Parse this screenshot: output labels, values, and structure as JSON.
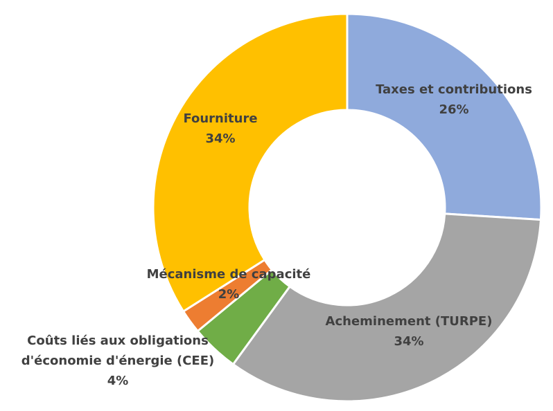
{
  "chart_data": {
    "type": "donut",
    "categories": [
      "Taxes et contributions",
      "Acheminement (TURPE)",
      "Coûts liés aux obligations d'économie d'énergie (CEE)",
      "Mécanisme de capacité",
      "Fourniture"
    ],
    "values": [
      26,
      34,
      4,
      2,
      34
    ],
    "value_labels": [
      "26%",
      "34%",
      "4%",
      "2%",
      "34%"
    ],
    "colors": [
      "#8faadc",
      "#a5a5a5",
      "#70ad47",
      "#ed7d31",
      "#ffc000"
    ]
  }
}
